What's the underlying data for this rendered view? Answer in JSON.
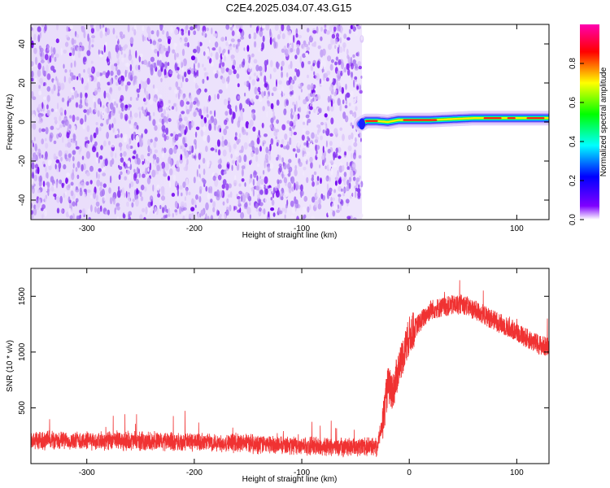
{
  "title": "C2E4.2025.034.07.43.G15",
  "chart_data": [
    {
      "type": "heatmap",
      "xlabel": "Height of straight line (km)",
      "ylabel": "Frequency (Hz)",
      "xlim": [
        -352,
        130
      ],
      "ylim": [
        -50,
        50
      ],
      "xticks": [
        -300,
        -200,
        -100,
        0,
        100
      ],
      "yticks": [
        -40,
        -20,
        0,
        20,
        40
      ],
      "grid": false,
      "noise_region_x": [
        -352,
        -44
      ],
      "signal_line": {
        "x": [
          -45,
          -40,
          -30,
          -20,
          -10,
          0,
          20,
          40,
          60,
          80,
          100,
          130
        ],
        "frequency": [
          -1,
          0.5,
          0.5,
          0,
          1,
          1,
          1,
          1.5,
          2,
          2,
          2,
          2
        ]
      },
      "colorbar": {
        "label": "Normalized spectral amplitude",
        "range": [
          0,
          1
        ],
        "ticks": [
          "0.0",
          "0.2",
          "0.4",
          "0.6",
          "0.8"
        ],
        "colors": [
          "#ffffff",
          "#7f00ff",
          "#0000ff",
          "#00ffff",
          "#00ff00",
          "#ffff00",
          "#ff0000",
          "#ff00b0"
        ]
      }
    },
    {
      "type": "line",
      "xlabel": "Height of straight line (km)",
      "ylabel": "SNR (10 * v/v)",
      "xlim": [
        -352,
        130
      ],
      "ylim": [
        0,
        1750
      ],
      "xticks": [
        -300,
        -200,
        -100,
        0,
        100
      ],
      "yticks": [
        500,
        1000,
        1500
      ],
      "grid": false,
      "color": "#f03232",
      "series": [
        {
          "x": [
            -352,
            -300,
            -250,
            -200,
            -150,
            -100,
            -60,
            -30,
            -25,
            -20,
            -15,
            -10,
            -5,
            0,
            10,
            20,
            30,
            40,
            50,
            60,
            70,
            80,
            90,
            100,
            110,
            120,
            130
          ],
          "values": [
            210,
            205,
            200,
            195,
            180,
            160,
            145,
            150,
            340,
            700,
            650,
            850,
            1000,
            1150,
            1270,
            1380,
            1400,
            1420,
            1430,
            1380,
            1330,
            1280,
            1230,
            1180,
            1120,
            1070,
            1040
          ]
        }
      ]
    }
  ]
}
